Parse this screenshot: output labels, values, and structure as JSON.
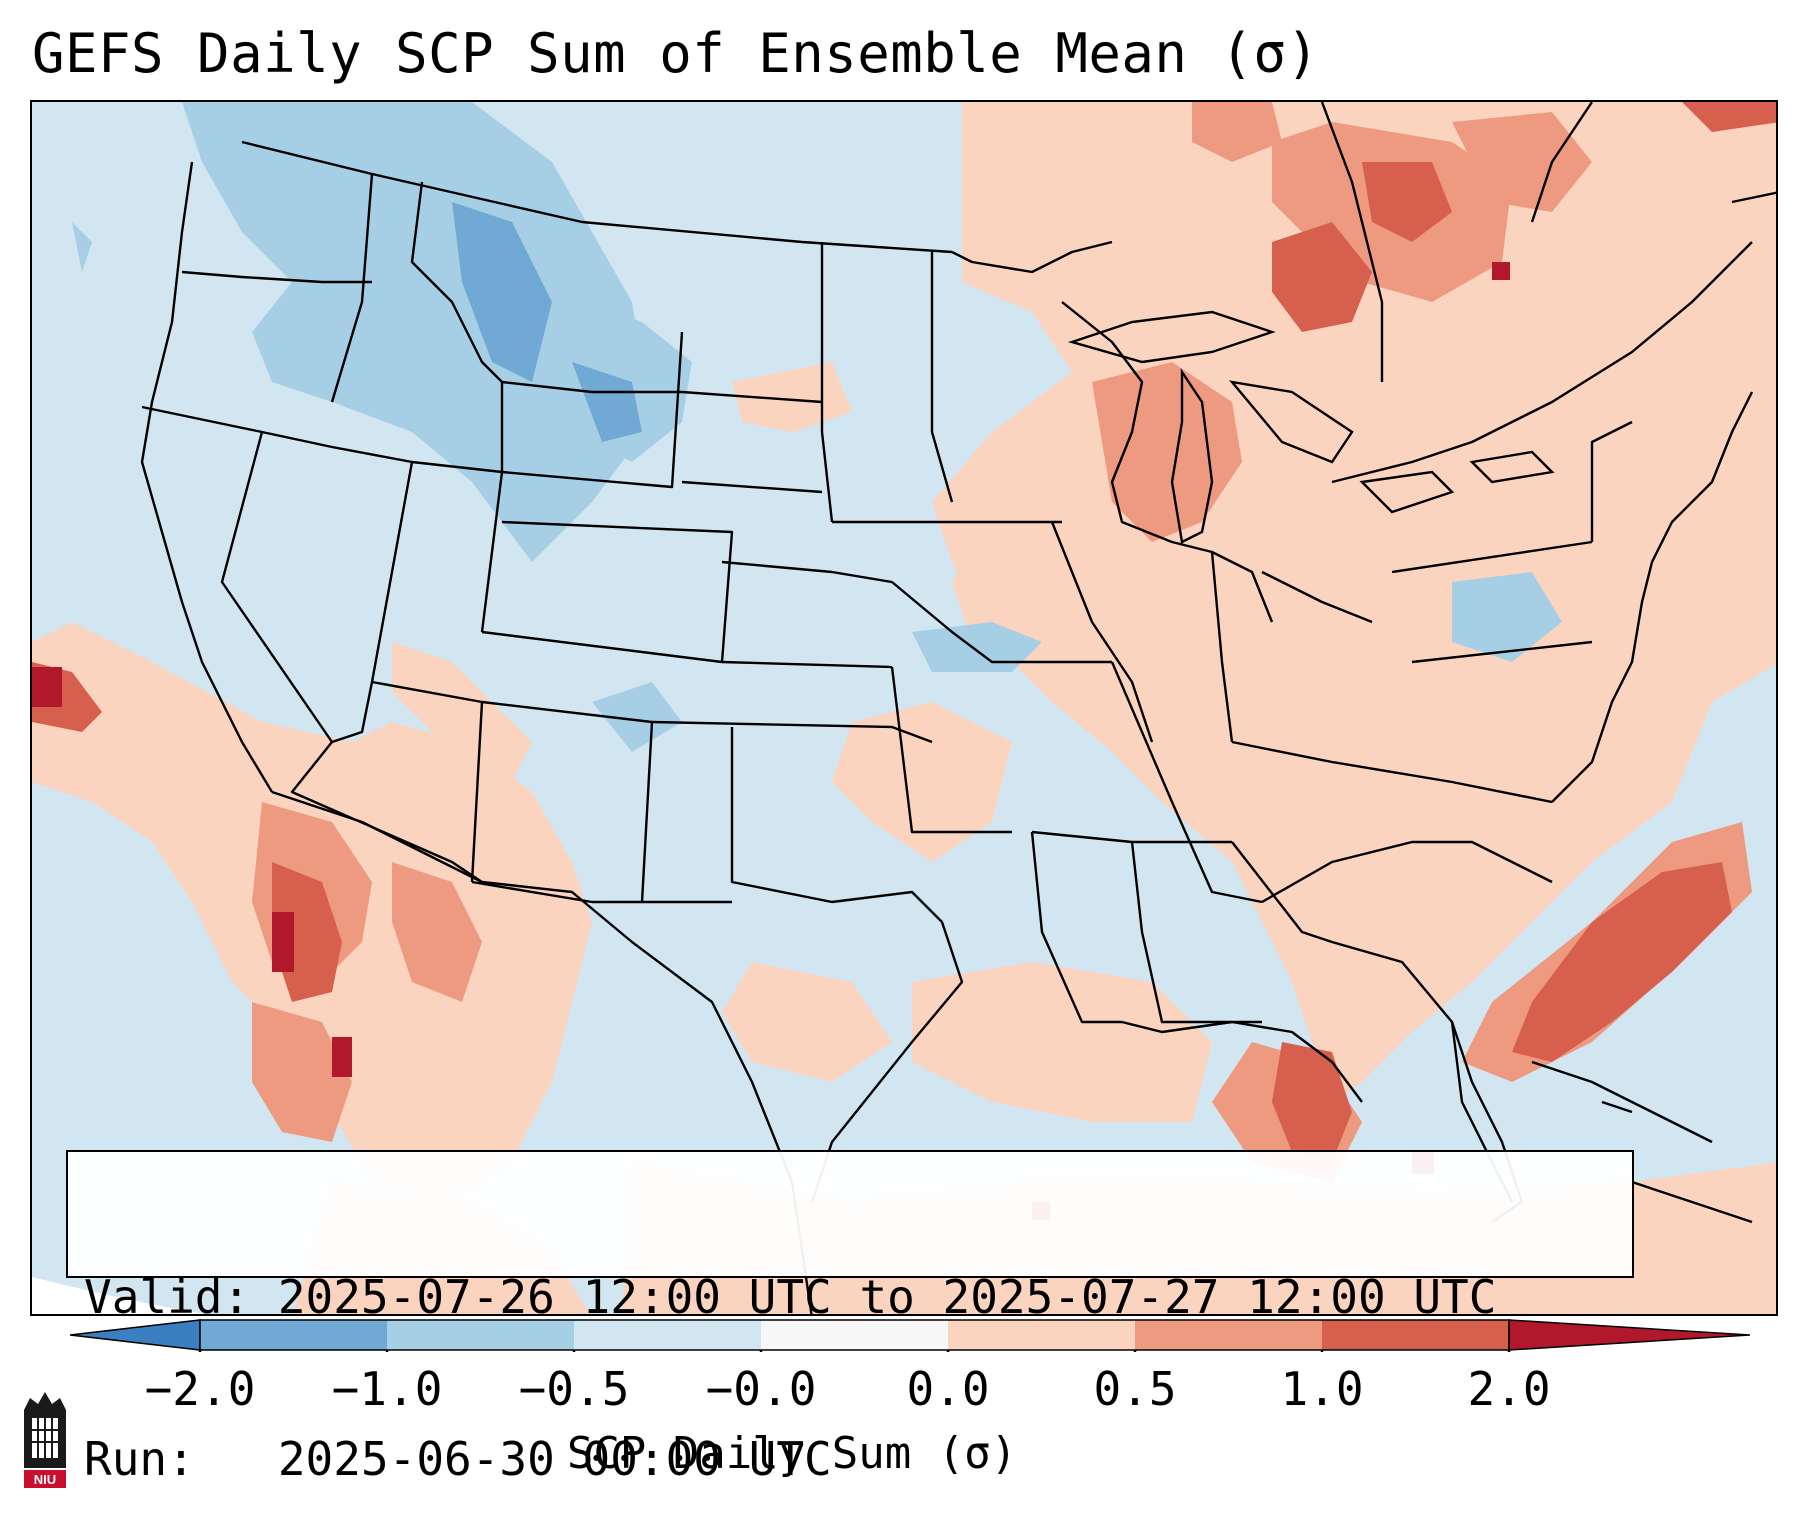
{
  "title": "GEFS Daily SCP Sum of Ensemble Mean (σ)",
  "info": {
    "valid_line": "Valid: 2025-07-26 12:00 UTC to 2025-07-27 12:00 UTC",
    "run_line": "Run:   2025-06-30 00:00 UTC"
  },
  "colorbar": {
    "label": "SCP Daily Sum (σ)",
    "tick_labels": [
      "−2.0",
      "−1.0",
      "−0.5",
      "−0.0",
      "0.0",
      "0.5",
      "1.0",
      "2.0"
    ],
    "colors": [
      "#3a80c0",
      "#6fa9d4",
      "#a6cfe6",
      "#d2e6f1",
      "#f7f7f7",
      "#fbd4c0",
      "#ee9a80",
      "#d6604d",
      "#b2182b"
    ]
  },
  "map": {
    "background_color": "#d2e6f1",
    "positive_color": "#fbd4c0",
    "strong_color": "#ee9a80",
    "very_strong_color": "#d6604d",
    "extreme_color": "#b2182b",
    "negative_color": "#a6cfe6",
    "strong_negative_color": "#6fa9d4"
  },
  "logo": {
    "text": "NIU",
    "icon": "niu-logo-icon"
  }
}
